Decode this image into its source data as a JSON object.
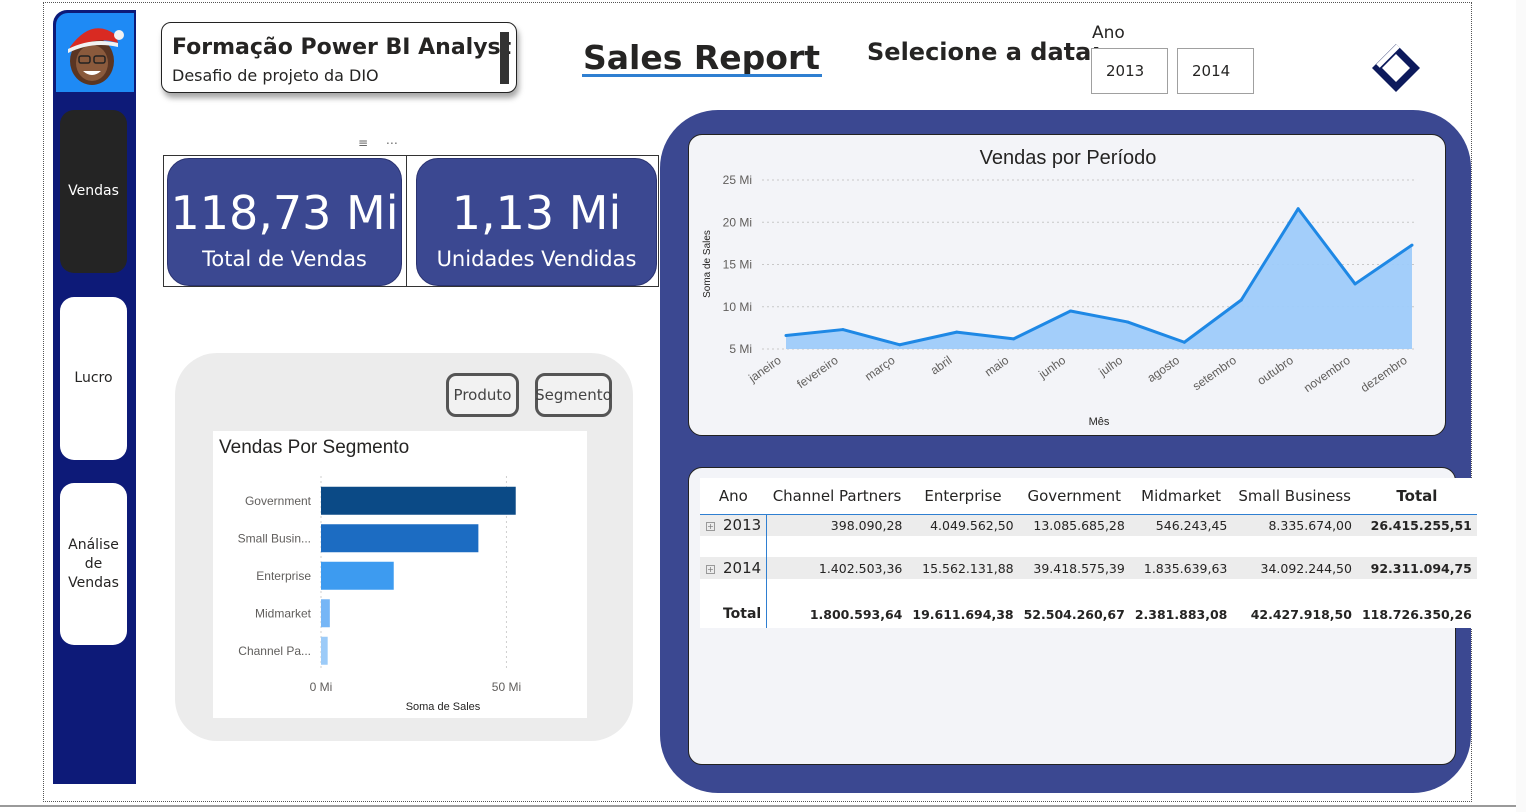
{
  "header": {
    "title": "Formação Power BI Analyst",
    "subtitle": "Desafio de projeto da DIO",
    "report_title": "Sales Report",
    "date_label": "Selecione a data:",
    "year_filter": {
      "label": "Ano",
      "options": [
        "2013",
        "2014"
      ]
    }
  },
  "sidebar": {
    "items": [
      {
        "label": "Vendas",
        "active": true
      },
      {
        "label": "Lucro",
        "active": false
      },
      {
        "label": "Análise de Vendas",
        "active": false
      }
    ]
  },
  "kpis": [
    {
      "value": "118,73 Mi",
      "label": "Total de Vendas"
    },
    {
      "value": "1,13 Mi",
      "label": "Unidades Vendidas"
    }
  ],
  "toggles": {
    "produto": "Produto",
    "segmento": "Segmento"
  },
  "colors": {
    "navy": "#0d1a78",
    "panel": "#3b4891",
    "accent": "#2f7fd1",
    "line": "#1e88e5",
    "area": "#9ecbfa"
  },
  "icons": [
    "filter-icon",
    "more-options-icon",
    "diamond-logo-icon",
    "expand-icon",
    "avatar"
  ],
  "chart_data": [
    {
      "type": "bar",
      "orientation": "horizontal",
      "title": "Vendas Por Segmento",
      "categories": [
        "Government",
        "Small Busin...",
        "Enterprise",
        "Midmarket",
        "Channel Pa..."
      ],
      "values": [
        52.5,
        42.43,
        19.61,
        2.38,
        1.8
      ],
      "colors": [
        "#0b4a86",
        "#1c6cc2",
        "#3d9bf0",
        "#76b6f6",
        "#9ccbf8"
      ],
      "xlabel": "Soma de Sales",
      "ylabel": "",
      "xlim": [
        0,
        55
      ],
      "x_ticks": [
        {
          "v": 0,
          "label": "0 Mi"
        },
        {
          "v": 50,
          "label": "50 Mi"
        }
      ]
    },
    {
      "type": "area",
      "title": "Vendas por Período",
      "categories": [
        "janeiro",
        "fevereiro",
        "março",
        "abril",
        "maio",
        "junho",
        "julho",
        "agosto",
        "setembro",
        "outubro",
        "novembro",
        "dezembro"
      ],
      "values": [
        6.6,
        7.3,
        5.5,
        7.0,
        6.2,
        9.5,
        8.2,
        5.8,
        10.8,
        21.6,
        12.7,
        17.3
      ],
      "xlabel": "Mês",
      "ylabel": "Soma de Sales",
      "ylim": [
        5,
        25
      ],
      "y_ticks": [
        {
          "v": 5,
          "label": "5 Mi"
        },
        {
          "v": 10,
          "label": "10 Mi"
        },
        {
          "v": 15,
          "label": "15 Mi"
        },
        {
          "v": 20,
          "label": "20 Mi"
        },
        {
          "v": 25,
          "label": "25 Mi"
        }
      ]
    },
    {
      "type": "table",
      "columns": [
        "Ano",
        "Channel Partners",
        "Enterprise",
        "Government",
        "Midmarket",
        "Small Business",
        "Total"
      ],
      "rows": [
        {
          "year": "2013",
          "values": [
            "398.090,28",
            "4.049.562,50",
            "13.085.685,28",
            "546.243,45",
            "8.335.674,00",
            "26.415.255,51"
          ]
        },
        {
          "year": "2014",
          "values": [
            "1.402.503,36",
            "15.562.131,88",
            "39.418.575,39",
            "1.835.639,63",
            "34.092.244,50",
            "92.311.094,75"
          ]
        }
      ],
      "total": {
        "label": "Total",
        "values": [
          "1.800.593,64",
          "19.611.694,38",
          "52.504.260,67",
          "2.381.883,08",
          "42.427.918,50",
          "118.726.350,26"
        ]
      }
    }
  ]
}
